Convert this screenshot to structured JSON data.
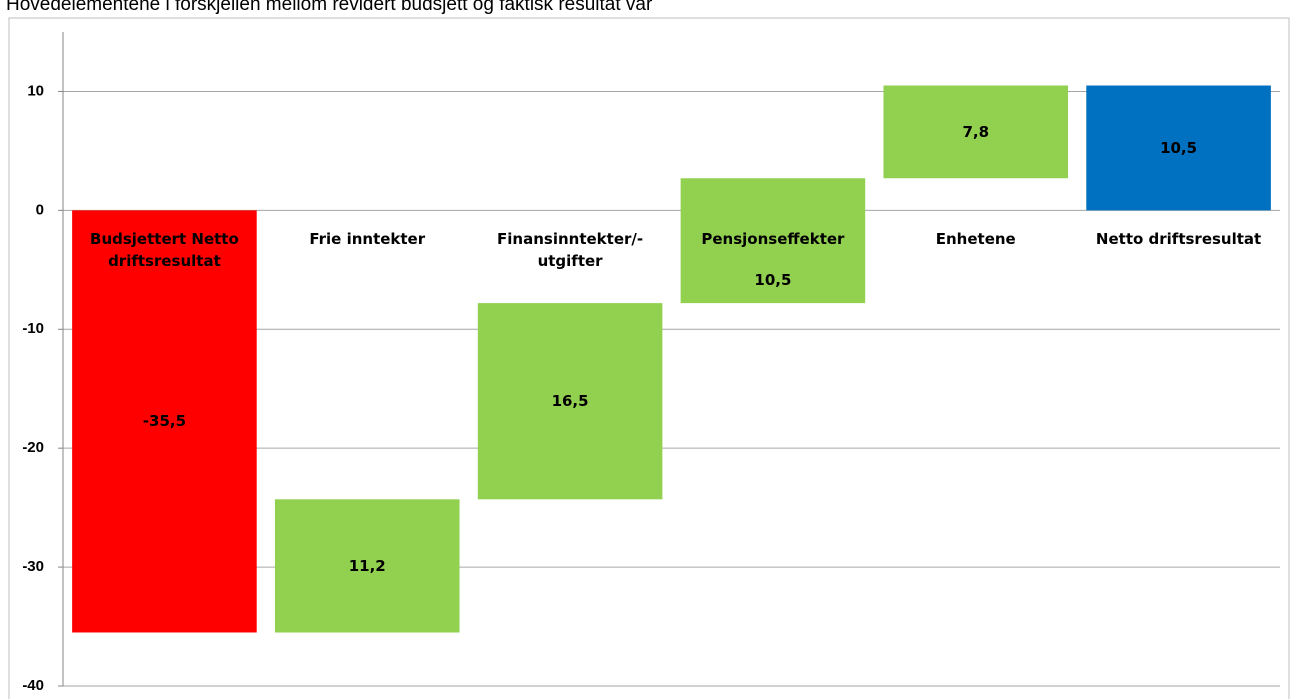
{
  "chart_data": {
    "type": "waterfall",
    "title": "Hovedelementene i forskjellen mellom revidert budsjett og faktisk resultat var",
    "categories": [
      "Budsjettert Netto driftsresultat",
      "Frie inntekter",
      "Finansinntekter/-utgifter",
      "Pensjonseffekter",
      "Enhetene",
      "Netto driftsresultat"
    ],
    "values": [
      -35.5,
      11.2,
      16.5,
      10.5,
      7.8,
      10.5
    ],
    "value_labels": [
      "-35,5",
      "11,2",
      "16,5",
      "10,5",
      "7,8",
      "10,5"
    ],
    "measures": [
      "absolute",
      "relative",
      "relative",
      "relative",
      "relative",
      "total"
    ],
    "colors": [
      "#ff0000",
      "#92d050",
      "#92d050",
      "#92d050",
      "#92d050",
      "#0070c0"
    ],
    "ylim": [
      -40,
      15
    ],
    "yticks": [
      -40,
      -30,
      -20,
      -10,
      0,
      10
    ],
    "grid": true
  }
}
